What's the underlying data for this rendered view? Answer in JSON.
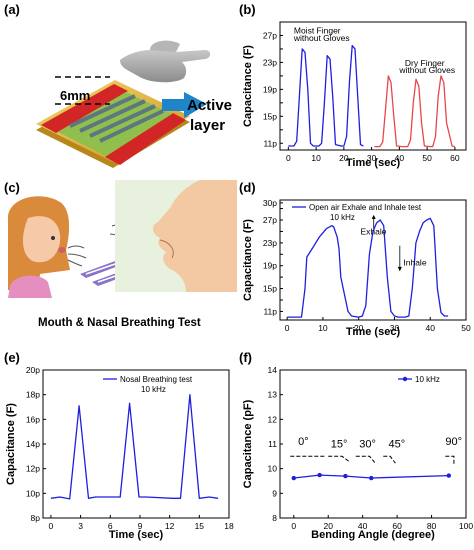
{
  "panels": {
    "a": {
      "label": "(a)",
      "dimension": "6mm",
      "active_layer_line1": "Active",
      "active_layer_line2": "layer"
    },
    "b": {
      "label": "(b)"
    },
    "c": {
      "label": "(c)",
      "caption": "Mouth & Nasal Breathing Test"
    },
    "d": {
      "label": "(d)"
    },
    "e": {
      "label": "(e)"
    },
    "f": {
      "label": "(f)"
    }
  },
  "colors": {
    "blue": "#1f1fe0",
    "red": "#e8474a",
    "axis": "#000000"
  },
  "chart_data": [
    {
      "id": "b",
      "type": "line",
      "xlabel": "Time (sec)",
      "ylabel": "Capacitance (F)",
      "xlim": [
        -3,
        64
      ],
      "ylim": [
        10,
        29
      ],
      "xticks": [
        0,
        10,
        20,
        30,
        40,
        50,
        60
      ],
      "yticks": [
        11,
        13,
        15,
        17,
        19,
        21,
        23,
        25,
        27
      ],
      "yticklabels": [
        "11p",
        "",
        "15p",
        "",
        "19p",
        "",
        "23p",
        "",
        "27p"
      ],
      "annotations": [
        {
          "text": "Moist Finger",
          "x": 2,
          "y": 27.3
        },
        {
          "text": "without Gloves",
          "x": 2,
          "y": 26.2
        },
        {
          "text": "Dry Finger",
          "x": 42,
          "y": 22.5
        },
        {
          "text": "without Gloves",
          "x": 40,
          "y": 21.4
        }
      ],
      "series": [
        {
          "name": "Moist Finger without Gloves",
          "color": "#1f1fe0",
          "x": [
            0,
            2,
            3,
            4,
            5,
            6,
            7,
            8,
            9,
            11,
            12,
            13,
            14,
            15,
            16,
            17,
            19,
            20,
            21,
            22,
            23,
            24,
            25,
            26,
            27
          ],
          "y": [
            10.6,
            10.6,
            11.3,
            18,
            25,
            24.5,
            19,
            11,
            10.6,
            10.6,
            11,
            17,
            24,
            23.5,
            18,
            10.8,
            10.6,
            10.6,
            12,
            20,
            25.5,
            25,
            18,
            10.8,
            10.6
          ]
        },
        {
          "name": "Dry Finger without Gloves",
          "color": "#e8474a",
          "x": [
            31,
            33,
            34,
            35,
            36,
            37,
            38,
            39,
            41,
            43,
            44,
            45,
            46,
            47,
            48,
            49,
            51,
            52,
            53,
            54,
            55,
            56,
            57,
            59,
            60
          ],
          "y": [
            10.5,
            10.5,
            11.2,
            16,
            21,
            20,
            15,
            10.6,
            10.5,
            10.5,
            11.5,
            17,
            20.5,
            19.5,
            14,
            10.6,
            10.5,
            10.5,
            12,
            18,
            21,
            20,
            14,
            10.6,
            10.5
          ]
        }
      ]
    },
    {
      "id": "d",
      "type": "line",
      "xlabel": "Time (sec)",
      "ylabel": "Capacitance (F)",
      "xlim": [
        -2,
        50
      ],
      "ylim": [
        9.5,
        30.5
      ],
      "xticks": [
        0,
        10,
        20,
        30,
        40,
        50
      ],
      "yticks": [
        11,
        13,
        15,
        17,
        19,
        21,
        23,
        25,
        27,
        29
      ],
      "yticklabels": [
        "11p",
        "",
        "15p",
        "",
        "19p",
        "",
        "23p",
        "",
        "27p",
        ""
      ],
      "extra_ytick_label": {
        "text": "30p",
        "y": 30
      },
      "legend": "Open air Exhale and Inhale test",
      "legend_sub": "10 kHz",
      "annotations": [
        {
          "text": "Exhale",
          "x": 20.5,
          "y": 24.5
        },
        {
          "text": "Inhale",
          "x": 32.5,
          "y": 19.0
        }
      ],
      "series": [
        {
          "name": "Open air Exhale and Inhale test",
          "color": "#1f1fe0",
          "x": [
            0,
            4,
            5,
            5.5,
            7,
            9,
            11,
            12.5,
            13,
            14,
            14.5,
            15,
            16,
            17,
            18,
            20,
            21,
            22,
            23,
            24,
            25,
            26,
            27,
            28,
            29,
            30,
            31,
            33,
            34,
            35,
            36,
            37,
            38,
            39,
            40,
            41,
            42,
            43,
            44,
            45
          ],
          "y": [
            10,
            10,
            15,
            20.5,
            22,
            24,
            25.5,
            26,
            25.8,
            24,
            22,
            17,
            14,
            11,
            10.2,
            10,
            10.2,
            12,
            21,
            25,
            26.5,
            27,
            26,
            17,
            11,
            10.2,
            10,
            10,
            10.2,
            15,
            23,
            25,
            26.5,
            27,
            27.3,
            26,
            15,
            10.8,
            10.2,
            10.2
          ]
        }
      ]
    },
    {
      "id": "e",
      "type": "line",
      "xlabel": "Time (sec)",
      "ylabel": "Capacitance (F)",
      "xlim": [
        -0.8,
        18
      ],
      "ylim": [
        8,
        20
      ],
      "xticks": [
        0,
        3,
        6,
        9,
        12,
        15,
        18
      ],
      "yticks": [
        8,
        10,
        12,
        14,
        16,
        18,
        20
      ],
      "yticklabels": [
        "8p",
        "10p",
        "12p",
        "14p",
        "16p",
        "18p",
        "20p"
      ],
      "legend": "Nosal Breathing test",
      "legend_sub": "10 kHz",
      "series": [
        {
          "name": "Nosal Breathing test",
          "color": "#1f1fe0",
          "x": [
            0,
            0.9,
            1.9,
            2.85,
            3.8,
            4.5,
            7,
            7.95,
            8.9,
            9.6,
            12.3,
            13.1,
            14.05,
            15,
            16,
            16.9
          ],
          "y": [
            9.6,
            9.7,
            9.55,
            17.1,
            9.6,
            9.7,
            9.7,
            17.3,
            9.7,
            9.7,
            9.6,
            9.6,
            18.0,
            9.6,
            9.7,
            9.6
          ]
        }
      ]
    },
    {
      "id": "f",
      "type": "line",
      "xlabel": "Bending Angle (degree)",
      "ylabel": "Capacitance (pF)",
      "xlim": [
        -8,
        100
      ],
      "ylim": [
        8,
        14
      ],
      "xticks": [
        0,
        20,
        40,
        60,
        80,
        100
      ],
      "yticks": [
        8,
        9,
        10,
        11,
        12,
        13,
        14
      ],
      "yticklabels": [
        "8",
        "9",
        "10",
        "11",
        "12",
        "13",
        "14"
      ],
      "legend": "10 kHz",
      "bend_labels": [
        {
          "text": "0°",
          "x": 2.5,
          "y": 10.95
        },
        {
          "text": "15°",
          "x": 21.5,
          "y": 10.85
        },
        {
          "text": "30°",
          "x": 38,
          "y": 10.85
        },
        {
          "text": "45°",
          "x": 55,
          "y": 10.85
        },
        {
          "text": "90°",
          "x": 88,
          "y": 10.95
        }
      ],
      "series": [
        {
          "name": "10 kHz",
          "color": "#1f1fe0",
          "x": [
            0,
            15,
            30,
            45,
            90
          ],
          "y": [
            9.62,
            9.74,
            9.7,
            9.62,
            9.72
          ]
        }
      ]
    }
  ]
}
